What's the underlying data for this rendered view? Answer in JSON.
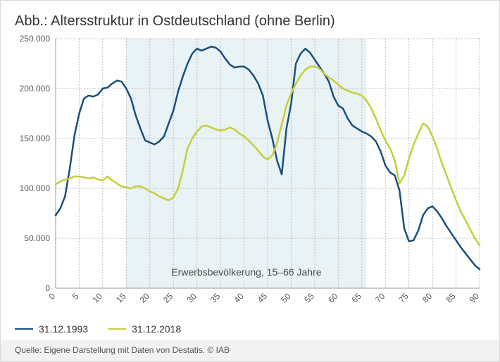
{
  "title": "Abb.: Altersstruktur in Ostdeutschland (ohne Berlin)",
  "source": "Quelle: Eigene Darstellung mit Daten von Destatis. © IAB",
  "chart": {
    "type": "line",
    "background_color": "#ffffff",
    "band": {
      "start": 15,
      "end": 66,
      "fill": "#e9f2f5",
      "label": "Erwerbsbevölkerung, 15–66 Jahre"
    },
    "xlim": [
      0,
      90
    ],
    "ylim": [
      0,
      250000
    ],
    "xtick_step": 5,
    "ytick_step": 50000,
    "ytick_format": "de-thousand",
    "grid_color": "#bdbdbd",
    "grid_dash": "2,2",
    "grid_width": 1,
    "axis_color": "#999999",
    "label_fontsize": 12,
    "line_width": 2.5,
    "x_tick_rotate": -45,
    "series": [
      {
        "name": "31.12.1993",
        "color": "#1c4e7a",
        "data": [
          [
            0,
            73000
          ],
          [
            1,
            80000
          ],
          [
            2,
            92000
          ],
          [
            3,
            120000
          ],
          [
            4,
            153000
          ],
          [
            5,
            175000
          ],
          [
            6,
            190000
          ],
          [
            7,
            193000
          ],
          [
            8,
            192000
          ],
          [
            9,
            194000
          ],
          [
            10,
            200000
          ],
          [
            11,
            201000
          ],
          [
            12,
            205000
          ],
          [
            13,
            208000
          ],
          [
            14,
            207000
          ],
          [
            15,
            200000
          ],
          [
            16,
            190000
          ],
          [
            17,
            173000
          ],
          [
            18,
            160000
          ],
          [
            19,
            148000
          ],
          [
            20,
            146000
          ],
          [
            21,
            144000
          ],
          [
            22,
            147000
          ],
          [
            23,
            152000
          ],
          [
            24,
            165000
          ],
          [
            25,
            178000
          ],
          [
            26,
            197000
          ],
          [
            27,
            212000
          ],
          [
            28,
            225000
          ],
          [
            29,
            235000
          ],
          [
            30,
            240000
          ],
          [
            31,
            238000
          ],
          [
            32,
            240000
          ],
          [
            33,
            242000
          ],
          [
            34,
            241000
          ],
          [
            35,
            237000
          ],
          [
            36,
            230000
          ],
          [
            37,
            224000
          ],
          [
            38,
            221000
          ],
          [
            39,
            222000
          ],
          [
            40,
            222000
          ],
          [
            41,
            219000
          ],
          [
            42,
            213000
          ],
          [
            43,
            205000
          ],
          [
            44,
            193000
          ],
          [
            45,
            168000
          ],
          [
            46,
            150000
          ],
          [
            47,
            128000
          ],
          [
            48,
            114000
          ],
          [
            49,
            160000
          ],
          [
            50,
            185000
          ],
          [
            51,
            225000
          ],
          [
            52,
            235000
          ],
          [
            53,
            240000
          ],
          [
            54,
            236000
          ],
          [
            55,
            229000
          ],
          [
            56,
            222000
          ],
          [
            57,
            215000
          ],
          [
            58,
            207000
          ],
          [
            59,
            192000
          ],
          [
            60,
            183000
          ],
          [
            61,
            180000
          ],
          [
            62,
            170000
          ],
          [
            63,
            163000
          ],
          [
            64,
            160000
          ],
          [
            65,
            157000
          ],
          [
            66,
            155000
          ],
          [
            67,
            152000
          ],
          [
            68,
            147000
          ],
          [
            69,
            137000
          ],
          [
            70,
            123000
          ],
          [
            71,
            116000
          ],
          [
            72,
            113000
          ],
          [
            73,
            98000
          ],
          [
            74,
            60000
          ],
          [
            75,
            47000
          ],
          [
            76,
            48000
          ],
          [
            77,
            58000
          ],
          [
            78,
            73000
          ],
          [
            79,
            80000
          ],
          [
            80,
            82000
          ],
          [
            81,
            77000
          ],
          [
            82,
            70000
          ],
          [
            83,
            62000
          ],
          [
            84,
            55000
          ],
          [
            85,
            48000
          ],
          [
            86,
            41000
          ],
          [
            87,
            35000
          ],
          [
            88,
            29000
          ],
          [
            89,
            23000
          ],
          [
            90,
            19000
          ]
        ]
      },
      {
        "name": "31.12.2018",
        "color": "#c4cf3a",
        "data": [
          [
            0,
            104000
          ],
          [
            1,
            107000
          ],
          [
            2,
            109000
          ],
          [
            3,
            110000
          ],
          [
            4,
            112000
          ],
          [
            5,
            112000
          ],
          [
            6,
            111000
          ],
          [
            7,
            110000
          ],
          [
            8,
            111000
          ],
          [
            9,
            109000
          ],
          [
            10,
            108000
          ],
          [
            11,
            112000
          ],
          [
            12,
            108000
          ],
          [
            13,
            105000
          ],
          [
            14,
            102000
          ],
          [
            15,
            101000
          ],
          [
            16,
            100000
          ],
          [
            17,
            102000
          ],
          [
            18,
            102000
          ],
          [
            19,
            100000
          ],
          [
            20,
            97000
          ],
          [
            21,
            95000
          ],
          [
            22,
            92000
          ],
          [
            23,
            90000
          ],
          [
            24,
            88000
          ],
          [
            25,
            91000
          ],
          [
            26,
            100000
          ],
          [
            27,
            118000
          ],
          [
            28,
            140000
          ],
          [
            29,
            150000
          ],
          [
            30,
            157000
          ],
          [
            31,
            162000
          ],
          [
            32,
            163000
          ],
          [
            33,
            161000
          ],
          [
            34,
            159000
          ],
          [
            35,
            158000
          ],
          [
            36,
            159000
          ],
          [
            37,
            161000
          ],
          [
            38,
            159000
          ],
          [
            39,
            155000
          ],
          [
            40,
            152000
          ],
          [
            41,
            148000
          ],
          [
            42,
            143000
          ],
          [
            43,
            138000
          ],
          [
            44,
            132000
          ],
          [
            45,
            129000
          ],
          [
            46,
            133000
          ],
          [
            47,
            145000
          ],
          [
            48,
            164000
          ],
          [
            49,
            183000
          ],
          [
            50,
            195000
          ],
          [
            51,
            205000
          ],
          [
            52,
            213000
          ],
          [
            53,
            219000
          ],
          [
            54,
            222000
          ],
          [
            55,
            222000
          ],
          [
            56,
            220000
          ],
          [
            57,
            215000
          ],
          [
            58,
            211000
          ],
          [
            59,
            208000
          ],
          [
            60,
            204000
          ],
          [
            61,
            200000
          ],
          [
            62,
            198000
          ],
          [
            63,
            196000
          ],
          [
            64,
            195000
          ],
          [
            65,
            193000
          ],
          [
            66,
            188000
          ],
          [
            67,
            180000
          ],
          [
            68,
            170000
          ],
          [
            69,
            158000
          ],
          [
            70,
            148000
          ],
          [
            71,
            140000
          ],
          [
            72,
            128000
          ],
          [
            73,
            105000
          ],
          [
            74,
            113000
          ],
          [
            75,
            130000
          ],
          [
            76,
            144000
          ],
          [
            77,
            155000
          ],
          [
            78,
            165000
          ],
          [
            79,
            162000
          ],
          [
            80,
            152000
          ],
          [
            81,
            140000
          ],
          [
            82,
            125000
          ],
          [
            83,
            113000
          ],
          [
            84,
            100000
          ],
          [
            85,
            88000
          ],
          [
            86,
            77000
          ],
          [
            87,
            68000
          ],
          [
            88,
            59000
          ],
          [
            89,
            50000
          ],
          [
            90,
            43000
          ]
        ]
      }
    ]
  },
  "legend": {
    "s0": "31.12.1993",
    "s1": "31.12.2018"
  }
}
